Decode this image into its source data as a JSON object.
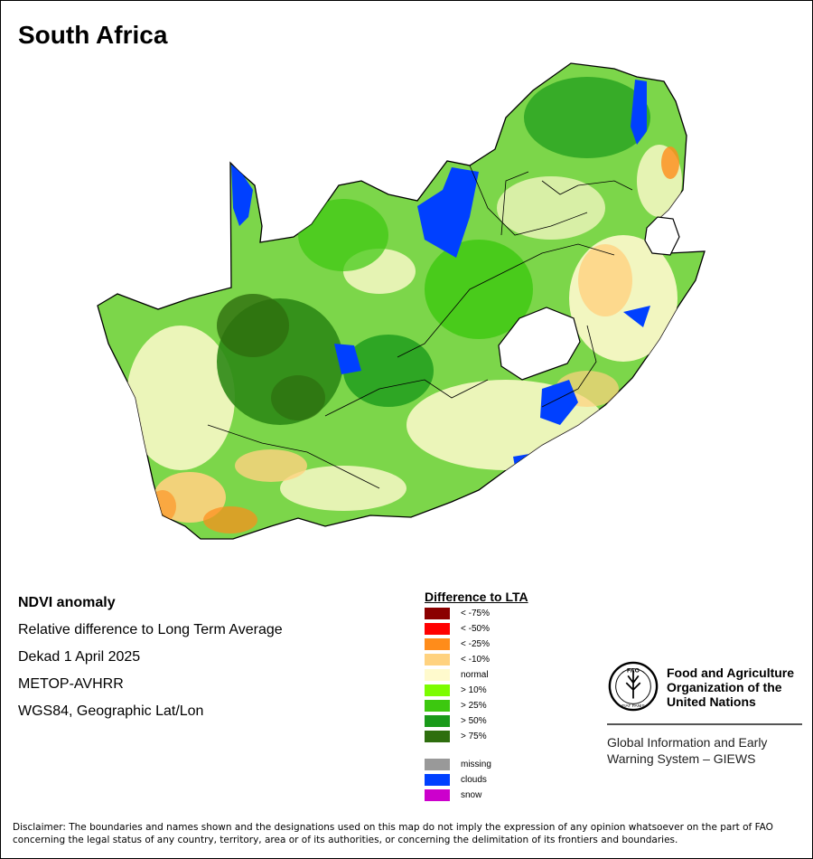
{
  "title": "South Africa",
  "info": {
    "heading": "NDVI anomaly",
    "line1": "Relative difference to Long Term Average",
    "line2": "Dekad 1 April 2025",
    "line3": "METOP-AVHRR",
    "line4": "WGS84, Geographic Lat/Lon"
  },
  "legend": {
    "title": "Difference to LTA",
    "items": [
      {
        "label": "< -75%",
        "color": "#8b0000"
      },
      {
        "label": "< -50%",
        "color": "#ff0000"
      },
      {
        "label": "< -25%",
        "color": "#ff8c1a"
      },
      {
        "label": "< -10%",
        "color": "#ffd27f"
      },
      {
        "label": "normal",
        "color": "#fffacd"
      },
      {
        "label": "> 10%",
        "color": "#7cfc00"
      },
      {
        "label": "> 25%",
        "color": "#3cc80f"
      },
      {
        "label": "> 50%",
        "color": "#1a9a1a"
      },
      {
        "label": "> 75%",
        "color": "#2e6e0e"
      }
    ],
    "extra": [
      {
        "label": "missing",
        "color": "#999999"
      },
      {
        "label": "clouds",
        "color": "#0040ff"
      },
      {
        "label": "snow",
        "color": "#cc00cc"
      }
    ]
  },
  "fao": {
    "name_line1": "Food and Agriculture",
    "name_line2": "Organization of the",
    "name_line3": "United Nations",
    "logo_text_top": "FAO",
    "logo_text_bottom": "FIAT PANIS",
    "giews_line1": "Global Information and Early",
    "giews_line2": "Warning System – GIEWS"
  },
  "disclaimer": "Disclaimer: The boundaries and names shown and the designations used on this map do not imply the expression of any opinion whatsoever on the part of FAO concerning the legal status of any country, territory, area or of its authorities, or concerning the delimitation of its frontiers and boundaries."
}
